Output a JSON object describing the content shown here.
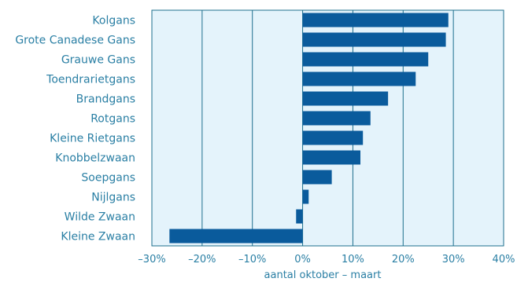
{
  "chart_data": {
    "type": "bar",
    "orientation": "horizontal",
    "categories": [
      "Kolgans",
      "Grote Canadese Gans",
      "Grauwe Gans",
      "Toendrarietgans",
      "Brandgans",
      "Rotgans",
      "Kleine Rietgans",
      "Knobbelzwaan",
      "Soepgans",
      "Nijlgans",
      "Wilde Zwaan",
      "Kleine Zwaan"
    ],
    "values": [
      29,
      28.5,
      25,
      22.5,
      17,
      13.5,
      12,
      11.5,
      5.8,
      1.2,
      -1.3,
      -26.5
    ],
    "xlabel": "aantal oktober – maart",
    "ylabel": "",
    "xlim": [
      -30,
      40
    ],
    "xticks": [
      -30,
      -20,
      -10,
      0,
      10,
      20,
      30,
      40
    ],
    "xtick_labels": [
      "–30%",
      "–20%",
      "–10%",
      "0%",
      "10%",
      "20%",
      "30%",
      "40%"
    ],
    "grid": "vertical",
    "colors": {
      "bar": "#0a5b9c",
      "plot_background": "#e4f3fb",
      "grid": "#1d6f8c",
      "text": "#2a7fa4"
    }
  }
}
